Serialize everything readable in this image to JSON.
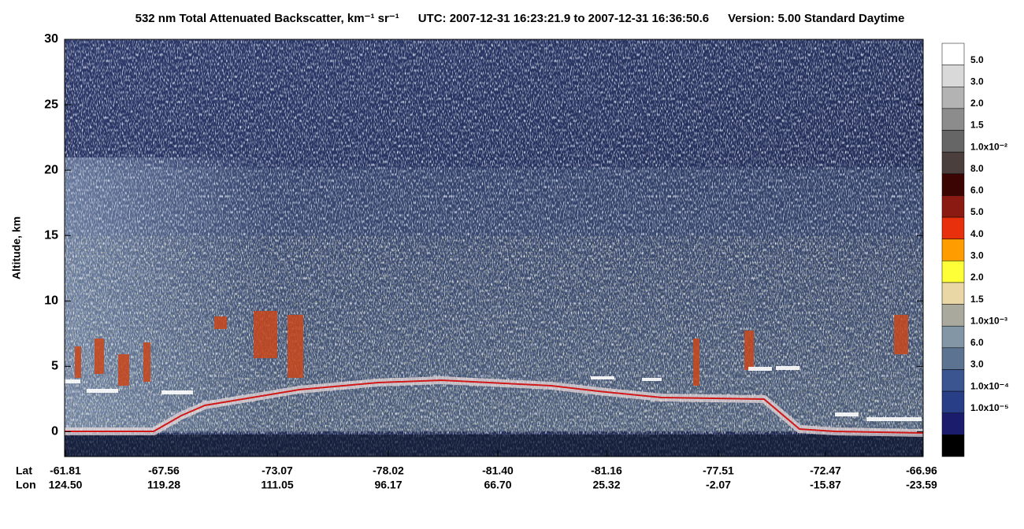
{
  "chart_data": {
    "type": "curtain",
    "title": "532 nm Total Attenuated Backscatter, km⁻¹ sr⁻¹",
    "subtitle": "UTC:  2007-12-31 16:23:21.9  to  2007-12-31 16:36:50.6",
    "version": "Version: 5.00  Standard  Daytime",
    "ylabel": "Altitude, km",
    "ylim": [
      -1.9,
      30
    ],
    "yticks": [
      0,
      5,
      10,
      15,
      20,
      25,
      30
    ],
    "lat_label": "Lat",
    "lon_label": "Lon",
    "xticks": [
      {
        "lat": "-61.81",
        "lon": "124.50"
      },
      {
        "lat": "-67.56",
        "lon": "119.28"
      },
      {
        "lat": "-73.07",
        "lon": "111.05"
      },
      {
        "lat": "-78.02",
        "lon": "96.17"
      },
      {
        "lat": "-81.40",
        "lon": "66.70"
      },
      {
        "lat": "-81.16",
        "lon": "25.32"
      },
      {
        "lat": "-77.51",
        "lon": "-2.07"
      },
      {
        "lat": "-72.47",
        "lon": "-15.87"
      },
      {
        "lat": "-66.96",
        "lon": "-23.59"
      }
    ],
    "colorbar": {
      "colors": [
        "#ffffff",
        "#d9d9d9",
        "#b3b3b3",
        "#8c8c8c",
        "#666666",
        "#4a3f3d",
        "#3a0503",
        "#8b1a12",
        "#e8300c",
        "#ff9d00",
        "#ffff38",
        "#e9d8a6",
        "#a9a99d",
        "#8396a6",
        "#5c7391",
        "#3a5590",
        "#283e86",
        "#1c1c6c",
        "#000000"
      ],
      "labels": [
        "5.0",
        "3.0",
        "2.0",
        "1.5",
        "1.0x10⁻²",
        "8.0",
        "6.0",
        "5.0",
        "4.0",
        "3.0",
        "2.0",
        "1.5",
        "1.0x10⁻³",
        "6.0",
        "3.0",
        "1.0x10⁻⁴",
        "1.0x10⁻⁵"
      ]
    }
  }
}
